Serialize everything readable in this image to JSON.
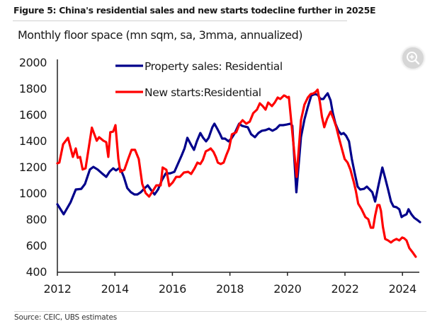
{
  "figure_title": "Figure 5: China's residential sales and new starts todecline further in 2025E",
  "source": "Source: CEIC, UBS estimates",
  "zoom_icon": "zoom-in-magnifier-icon",
  "chart_data": {
    "type": "line",
    "title": "Figure 5: China's residential sales and new starts todecline further in 2025E",
    "subtitle": "Monthly floor space (mn sqm, sa, 3mma, annualized)",
    "xlabel": "",
    "ylabel": "Monthly floor space (mn sqm, sa, 3mma, annualized)",
    "xlim": [
      2012,
      2024.6
    ],
    "ylim": [
      400,
      2000
    ],
    "x_ticks": [
      2012,
      2014,
      2016,
      2018,
      2020,
      2022,
      2024
    ],
    "x_tick_labels": [
      "2012",
      "2014",
      "2016",
      "2018",
      "2020",
      "2022",
      "2024"
    ],
    "y_ticks": [
      400,
      600,
      800,
      1000,
      1200,
      1400,
      1600,
      1800,
      2000
    ],
    "y_tick_labels": [
      "400",
      "600",
      "800",
      "1000",
      "1200",
      "1400",
      "1600",
      "1800",
      "2000"
    ],
    "grid": false,
    "legend_position": "top-center",
    "series": [
      {
        "name": "Property sales: Residential",
        "color": "#00008B",
        "points": [
          [
            2012.0,
            914
          ],
          [
            2012.22,
            838
          ],
          [
            2012.46,
            930
          ],
          [
            2012.64,
            1027
          ],
          [
            2012.83,
            1032
          ],
          [
            2012.96,
            1070
          ],
          [
            2013.13,
            1180
          ],
          [
            2013.25,
            1200
          ],
          [
            2013.4,
            1180
          ],
          [
            2013.55,
            1151
          ],
          [
            2013.7,
            1124
          ],
          [
            2013.82,
            1165
          ],
          [
            2013.94,
            1189
          ],
          [
            2014.04,
            1173
          ],
          [
            2014.14,
            1189
          ],
          [
            2014.21,
            1178
          ],
          [
            2014.31,
            1124
          ],
          [
            2014.43,
            1038
          ],
          [
            2014.56,
            1006
          ],
          [
            2014.68,
            989
          ],
          [
            2014.78,
            989
          ],
          [
            2014.9,
            1006
          ],
          [
            2015.04,
            1038
          ],
          [
            2015.14,
            1059
          ],
          [
            2015.26,
            1022
          ],
          [
            2015.38,
            989
          ],
          [
            2015.5,
            1027
          ],
          [
            2015.63,
            1097
          ],
          [
            2015.77,
            1151
          ],
          [
            2015.92,
            1151
          ],
          [
            2016.07,
            1162
          ],
          [
            2016.19,
            1222
          ],
          [
            2016.32,
            1287
          ],
          [
            2016.42,
            1341
          ],
          [
            2016.52,
            1422
          ],
          [
            2016.65,
            1368
          ],
          [
            2016.75,
            1330
          ],
          [
            2016.85,
            1395
          ],
          [
            2016.97,
            1459
          ],
          [
            2017.07,
            1422
          ],
          [
            2017.17,
            1395
          ],
          [
            2017.26,
            1422
          ],
          [
            2017.39,
            1503
          ],
          [
            2017.46,
            1530
          ],
          [
            2017.56,
            1492
          ],
          [
            2017.66,
            1449
          ],
          [
            2017.73,
            1416
          ],
          [
            2017.83,
            1416
          ],
          [
            2017.95,
            1395
          ],
          [
            2018.05,
            1416
          ],
          [
            2018.17,
            1459
          ],
          [
            2018.32,
            1530
          ],
          [
            2018.42,
            1514
          ],
          [
            2018.52,
            1508
          ],
          [
            2018.62,
            1503
          ],
          [
            2018.74,
            1449
          ],
          [
            2018.87,
            1427
          ],
          [
            2018.99,
            1459
          ],
          [
            2019.11,
            1476
          ],
          [
            2019.24,
            1481
          ],
          [
            2019.36,
            1492
          ],
          [
            2019.48,
            1476
          ],
          [
            2019.61,
            1492
          ],
          [
            2019.73,
            1519
          ],
          [
            2019.85,
            1519
          ],
          [
            2019.98,
            1524
          ],
          [
            2020.1,
            1530
          ],
          [
            2020.17,
            1514
          ],
          [
            2020.31,
            1006
          ],
          [
            2020.47,
            1427
          ],
          [
            2020.59,
            1562
          ],
          [
            2020.71,
            1659
          ],
          [
            2020.83,
            1746
          ],
          [
            2020.96,
            1757
          ],
          [
            2021.05,
            1751
          ],
          [
            2021.15,
            1719
          ],
          [
            2021.25,
            1719
          ],
          [
            2021.32,
            1741
          ],
          [
            2021.4,
            1762
          ],
          [
            2021.5,
            1708
          ],
          [
            2021.58,
            1611
          ],
          [
            2021.67,
            1530
          ],
          [
            2021.77,
            1476
          ],
          [
            2021.87,
            1449
          ],
          [
            2021.95,
            1459
          ],
          [
            2022.04,
            1438
          ],
          [
            2022.14,
            1395
          ],
          [
            2022.24,
            1260
          ],
          [
            2022.34,
            1151
          ],
          [
            2022.44,
            1049
          ],
          [
            2022.53,
            1027
          ],
          [
            2022.66,
            1032
          ],
          [
            2022.76,
            1049
          ],
          [
            2022.86,
            1027
          ],
          [
            2022.95,
            1006
          ],
          [
            2023.05,
            935
          ],
          [
            2023.15,
            1043
          ],
          [
            2023.23,
            1124
          ],
          [
            2023.3,
            1195
          ],
          [
            2023.4,
            1114
          ],
          [
            2023.5,
            1027
          ],
          [
            2023.6,
            935
          ],
          [
            2023.69,
            897
          ],
          [
            2023.79,
            892
          ],
          [
            2023.89,
            876
          ],
          [
            2023.97,
            816
          ],
          [
            2024.04,
            827
          ],
          [
            2024.14,
            838
          ],
          [
            2024.21,
            876
          ],
          [
            2024.31,
            838
          ],
          [
            2024.41,
            811
          ],
          [
            2024.51,
            795
          ],
          [
            2024.61,
            778
          ]
        ]
      },
      {
        "name": "New starts:Residential",
        "color": "#FF0000",
        "points": [
          [
            2012.0,
            1227
          ],
          [
            2012.07,
            1233
          ],
          [
            2012.2,
            1373
          ],
          [
            2012.37,
            1422
          ],
          [
            2012.54,
            1276
          ],
          [
            2012.64,
            1341
          ],
          [
            2012.71,
            1270
          ],
          [
            2012.79,
            1276
          ],
          [
            2012.88,
            1180
          ],
          [
            2012.98,
            1189
          ],
          [
            2013.2,
            1500
          ],
          [
            2013.37,
            1400
          ],
          [
            2013.45,
            1427
          ],
          [
            2013.6,
            1400
          ],
          [
            2013.7,
            1389
          ],
          [
            2013.77,
            1276
          ],
          [
            2013.84,
            1465
          ],
          [
            2013.94,
            1470
          ],
          [
            2014.02,
            1519
          ],
          [
            2014.12,
            1260
          ],
          [
            2014.19,
            1162
          ],
          [
            2014.33,
            1178
          ],
          [
            2014.46,
            1260
          ],
          [
            2014.58,
            1330
          ],
          [
            2014.7,
            1330
          ],
          [
            2014.83,
            1260
          ],
          [
            2014.95,
            1070
          ],
          [
            2015.07,
            1000
          ],
          [
            2015.19,
            973
          ],
          [
            2015.32,
            1016
          ],
          [
            2015.44,
            1059
          ],
          [
            2015.59,
            1059
          ],
          [
            2015.66,
            1195
          ],
          [
            2015.79,
            1178
          ],
          [
            2015.89,
            1054
          ],
          [
            2016.01,
            1081
          ],
          [
            2016.13,
            1124
          ],
          [
            2016.26,
            1124
          ],
          [
            2016.4,
            1157
          ],
          [
            2016.55,
            1162
          ],
          [
            2016.65,
            1146
          ],
          [
            2016.77,
            1189
          ],
          [
            2016.87,
            1233
          ],
          [
            2016.97,
            1222
          ],
          [
            2017.06,
            1254
          ],
          [
            2017.16,
            1319
          ],
          [
            2017.26,
            1330
          ],
          [
            2017.33,
            1341
          ],
          [
            2017.43,
            1314
          ],
          [
            2017.51,
            1276
          ],
          [
            2017.58,
            1233
          ],
          [
            2017.68,
            1222
          ],
          [
            2017.78,
            1233
          ],
          [
            2017.87,
            1287
          ],
          [
            2017.97,
            1341
          ],
          [
            2018.07,
            1449
          ],
          [
            2018.22,
            1465
          ],
          [
            2018.34,
            1530
          ],
          [
            2018.44,
            1557
          ],
          [
            2018.57,
            1530
          ],
          [
            2018.69,
            1546
          ],
          [
            2018.81,
            1611
          ],
          [
            2018.94,
            1638
          ],
          [
            2019.04,
            1686
          ],
          [
            2019.14,
            1665
          ],
          [
            2019.24,
            1638
          ],
          [
            2019.33,
            1692
          ],
          [
            2019.46,
            1665
          ],
          [
            2019.56,
            1692
          ],
          [
            2019.66,
            1730
          ],
          [
            2019.75,
            1719
          ],
          [
            2019.88,
            1746
          ],
          [
            2019.93,
            1741
          ],
          [
            2020.0,
            1730
          ],
          [
            2020.05,
            1735
          ],
          [
            2020.32,
            1124
          ],
          [
            2020.47,
            1557
          ],
          [
            2020.59,
            1676
          ],
          [
            2020.71,
            1730
          ],
          [
            2020.81,
            1757
          ],
          [
            2020.91,
            1762
          ],
          [
            2020.98,
            1773
          ],
          [
            2021.05,
            1790
          ],
          [
            2021.13,
            1692
          ],
          [
            2021.2,
            1584
          ],
          [
            2021.28,
            1503
          ],
          [
            2021.38,
            1568
          ],
          [
            2021.5,
            1622
          ],
          [
            2021.6,
            1568
          ],
          [
            2021.7,
            1503
          ],
          [
            2021.79,
            1422
          ],
          [
            2021.89,
            1341
          ],
          [
            2021.99,
            1260
          ],
          [
            2022.09,
            1233
          ],
          [
            2022.19,
            1179
          ],
          [
            2022.31,
            1081
          ],
          [
            2022.38,
            1016
          ],
          [
            2022.46,
            919
          ],
          [
            2022.58,
            876
          ],
          [
            2022.71,
            816
          ],
          [
            2022.81,
            800
          ],
          [
            2022.9,
            735
          ],
          [
            2022.98,
            735
          ],
          [
            2023.05,
            827
          ],
          [
            2023.13,
            908
          ],
          [
            2023.2,
            908
          ],
          [
            2023.25,
            865
          ],
          [
            2023.32,
            741
          ],
          [
            2023.4,
            649
          ],
          [
            2023.5,
            638
          ],
          [
            2023.6,
            622
          ],
          [
            2023.69,
            638
          ],
          [
            2023.79,
            649
          ],
          [
            2023.89,
            638
          ],
          [
            2023.99,
            660
          ],
          [
            2024.06,
            654
          ],
          [
            2024.14,
            638
          ],
          [
            2024.24,
            579
          ],
          [
            2024.34,
            551
          ],
          [
            2024.46,
            513
          ]
        ]
      }
    ]
  }
}
